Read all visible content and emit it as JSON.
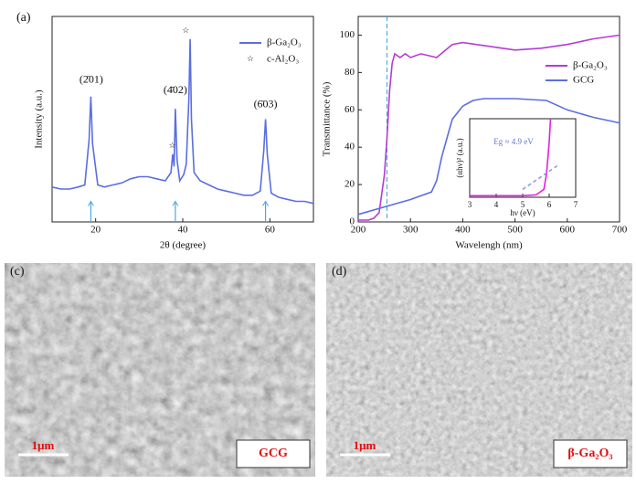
{
  "panel_label": "(a)",
  "chart_data": [
    {
      "type": "line",
      "xlabel": "2θ (degree)",
      "ylabel": "Intensity (a.u.)",
      "xlim": [
        10,
        70
      ],
      "ylim": [
        0,
        100
      ],
      "xticks": [
        20,
        40,
        60
      ],
      "annotations": [
        "(2̄01)",
        "(4̄02)",
        "(6̄03)"
      ],
      "star_marker": "☆",
      "star_legend": "c-Al₂O₃",
      "series": [
        {
          "name": "β-Ga₂O₃",
          "color": "#5b6ee1",
          "x": [
            10,
            12,
            14,
            16,
            17.5,
            18.5,
            18.9,
            19.3,
            20.5,
            22,
            24,
            26,
            28,
            30,
            32,
            34,
            36,
            37.3,
            37.7,
            38.0,
            38.3,
            38.7,
            39.3,
            40.2,
            40.8,
            41.4,
            41.7,
            42.0,
            42.6,
            44,
            46,
            48,
            50,
            52,
            54,
            56,
            57.8,
            58.6,
            59,
            59.4,
            60.3,
            62,
            64,
            66,
            68,
            70
          ],
          "values": [
            17,
            16,
            16,
            17,
            18,
            40,
            61,
            38,
            18,
            17,
            18,
            19,
            21,
            22,
            22,
            21,
            20,
            24,
            33,
            27,
            55,
            30,
            20,
            23,
            28,
            60,
            89,
            50,
            24,
            20,
            18,
            16,
            15,
            14,
            13,
            13,
            15,
            35,
            50,
            33,
            14,
            12,
            11,
            10,
            10,
            9
          ]
        }
      ]
    },
    {
      "type": "line",
      "xlabel": "Wavelengh (nm)",
      "ylabel": "Transmittance (%)",
      "xlim": [
        200,
        700
      ],
      "ylim": [
        0,
        110
      ],
      "xticks": [
        200,
        300,
        400,
        500,
        600,
        700
      ],
      "yticks": [
        0,
        20,
        40,
        60,
        80,
        100
      ],
      "reference_line_x": 255,
      "series": [
        {
          "name": "β-Ga₂O₃",
          "color": "#b43cd2",
          "x": [
            200,
            220,
            230,
            240,
            250,
            255,
            260,
            265,
            270,
            275,
            280,
            290,
            300,
            320,
            350,
            380,
            400,
            450,
            500,
            550,
            600,
            650,
            700
          ],
          "values": [
            1,
            1,
            2,
            5,
            25,
            45,
            70,
            85,
            90,
            89,
            88,
            90,
            88,
            90,
            88,
            95,
            96,
            94,
            92,
            93,
            95,
            98,
            100
          ]
        },
        {
          "name": "GCG",
          "color": "#5b6ee1",
          "x": [
            200,
            250,
            300,
            320,
            340,
            350,
            360,
            370,
            380,
            400,
            420,
            440,
            500,
            560,
            600,
            650,
            700
          ],
          "values": [
            4,
            8,
            12,
            14,
            16,
            22,
            35,
            45,
            55,
            62,
            65,
            66,
            66,
            65,
            60,
            56,
            53
          ]
        }
      ]
    },
    {
      "type": "line",
      "xlabel": "hν (eV)",
      "ylabel": "(αhν)² (a.u.)",
      "xlim": [
        3,
        7
      ],
      "ylim": [
        0,
        100
      ],
      "xticks": [
        3,
        4,
        5,
        6,
        7
      ],
      "annotations": [
        "Eg ≈ 4.9 eV"
      ],
      "series": [
        {
          "color": "#e020e0",
          "x": [
            3,
            4,
            5,
            5.5,
            5.8,
            5.9,
            6.0,
            6.05
          ],
          "values": [
            2,
            2,
            2,
            3,
            10,
            30,
            70,
            100
          ]
        },
        {
          "color": "#8a9ae8",
          "dashed": true,
          "x": [
            5.0,
            6.3
          ],
          "values": [
            10,
            40
          ]
        }
      ]
    }
  ],
  "images": [
    {
      "label": "(c)",
      "scale_bar": "1μm",
      "caption": "GCG"
    },
    {
      "label": "(d)",
      "scale_bar": "1μm",
      "caption": "β-Ga₂O₃"
    }
  ]
}
